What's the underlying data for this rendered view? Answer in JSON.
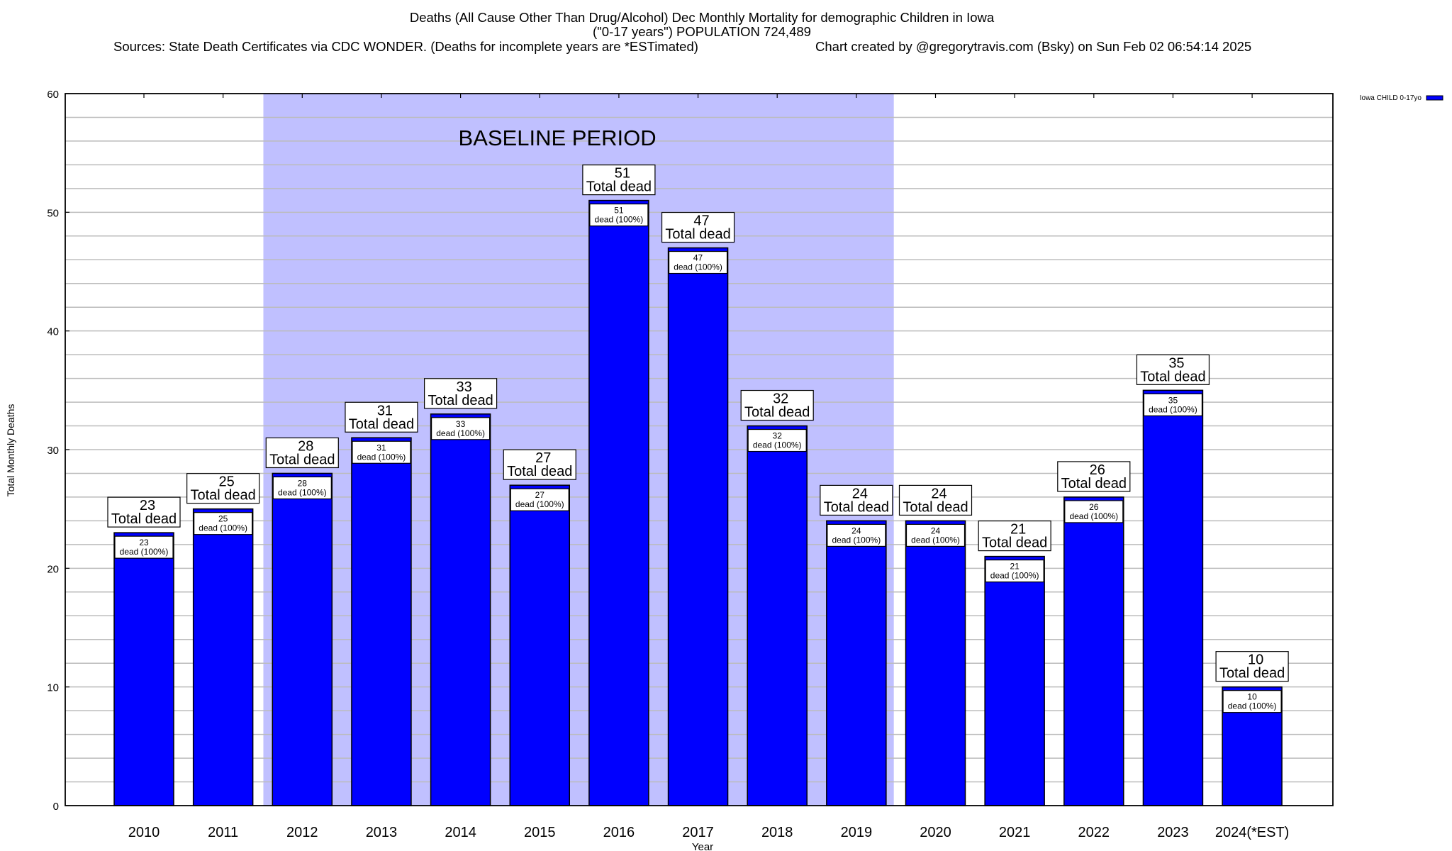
{
  "chart_data": {
    "type": "bar",
    "title_lines": [
      "Deaths (All Cause Other Than Drug/Alcohol) Dec Monthly Mortality for demographic Children in Iowa",
      "(\"0-17 years\") POPULATION 724,489"
    ],
    "sources": "Sources: State Death Certificates via CDC WONDER. (Deaths for incomplete years are *ESTimated)",
    "credit": "Chart created by @gregorytravis.com (Bsky) on Sun Feb 02 06:54:14 2025",
    "xlabel": "Year",
    "ylabel": "Total Monthly Deaths",
    "ylim": [
      0,
      60
    ],
    "yticks": [
      0,
      10,
      20,
      30,
      40,
      50,
      60
    ],
    "minor_grid_step": 2,
    "categories": [
      "2010",
      "2011",
      "2012",
      "2013",
      "2014",
      "2015",
      "2016",
      "2017",
      "2018",
      "2019",
      "2020",
      "2021",
      "2022",
      "2023",
      "2024(*EST)"
    ],
    "series": [
      {
        "name": "Iowa CHILD 0-17yo",
        "color": "#0000ff",
        "values": [
          23,
          25,
          28,
          31,
          33,
          27,
          51,
          47,
          32,
          24,
          24,
          21,
          26,
          35,
          10
        ]
      }
    ],
    "total_label": "Total dead",
    "inner_label_suffix": "dead (100%)",
    "shaded_region": {
      "label": "BASELINE PERIOD",
      "from_category": "2012",
      "to_category": "2019",
      "color": "#c0c0ff"
    },
    "legend": "top-right",
    "grid": true
  }
}
